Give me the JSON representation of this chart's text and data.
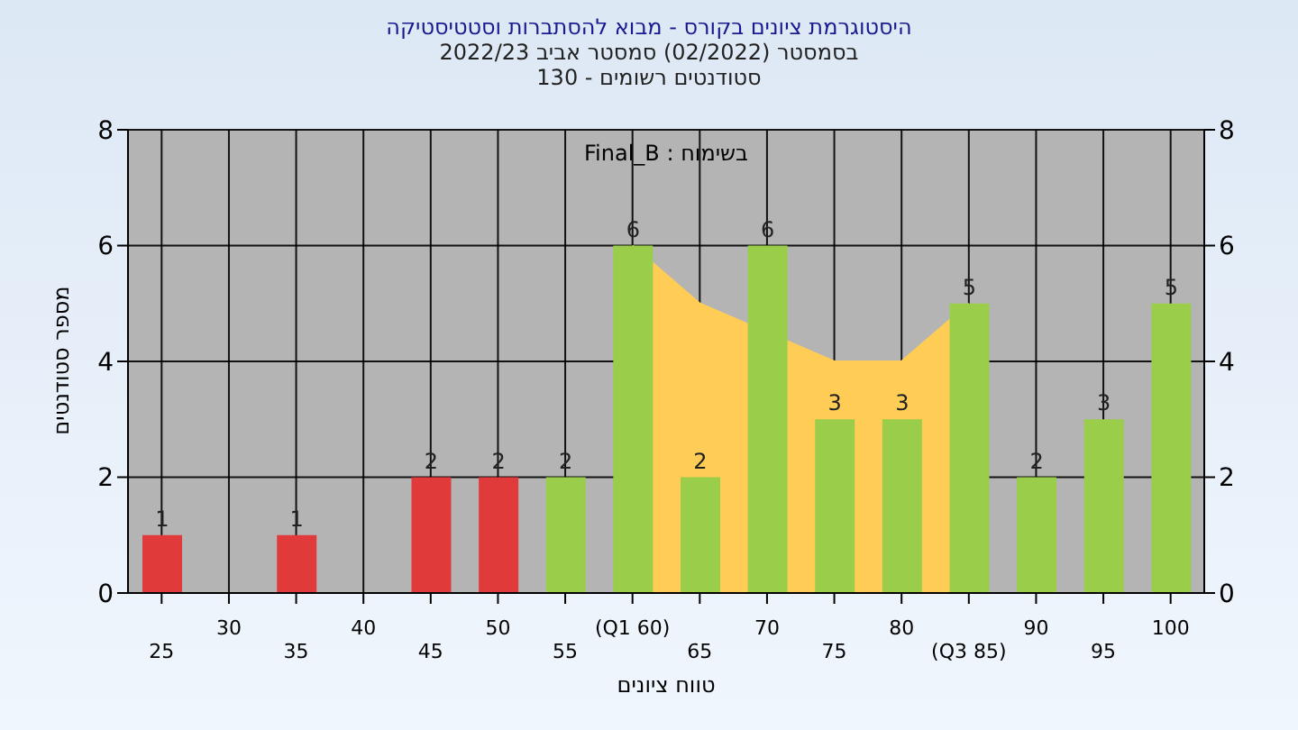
{
  "chart_data": {
    "type": "bar",
    "title": "היסטוגרמת ציונים בקורס - מבוא להסתברות וסטטיסטיקה",
    "subtitle": "בסמסטר  (02/2022)  סמסטר אביב 2022/23\nסטודנטים רשומים - 130",
    "xlabel": "טווח ציונים",
    "ylabel": "מספר סטודנטים",
    "annotations": [
      "בשימוח : Final_B"
    ],
    "categories": [
      "25",
      "30",
      "35",
      "40",
      "45",
      "50",
      "55",
      "(Q1 60)",
      "65",
      "70",
      "75",
      "80",
      "(Q3 85)",
      "90",
      "95",
      "100"
    ],
    "series": [
      {
        "type": "area",
        "color": "#ffcc55",
        "values": [
          null,
          null,
          null,
          null,
          null,
          null,
          null,
          6,
          5,
          null,
          4,
          4,
          5,
          null,
          null,
          null
        ]
      },
      {
        "value_labels": [
          "1",
          null,
          "1",
          null,
          "2",
          "2",
          "2",
          "6",
          "2",
          "6",
          "3",
          "3",
          "5",
          "2",
          "3",
          "5"
        ],
        "colors": [
          "#e03a3a",
          "#e03a3a",
          "#e03a3a",
          "#e03a3a",
          "#e03a3a",
          "#e03a3a",
          "#9acd4a",
          "#9acd4a",
          "#9acd4a",
          "#9acd4a",
          "#9acd4a",
          "#9acd4a",
          "#9acd4a",
          "#9acd4a",
          "#9acd4a",
          "#9acd4a"
        ],
        "values": [
          1,
          null,
          1,
          null,
          2,
          2,
          2,
          6,
          2,
          6,
          3,
          3,
          5,
          2,
          3,
          5
        ]
      }
    ],
    "ylim": [
      0,
      8
    ],
    "yticks": [
      0,
      2,
      4,
      6,
      8
    ],
    "y2lim": [
      0,
      8
    ],
    "y2ticks": [
      0,
      2,
      4,
      6,
      8
    ],
    "grid": true,
    "legend": false
  }
}
